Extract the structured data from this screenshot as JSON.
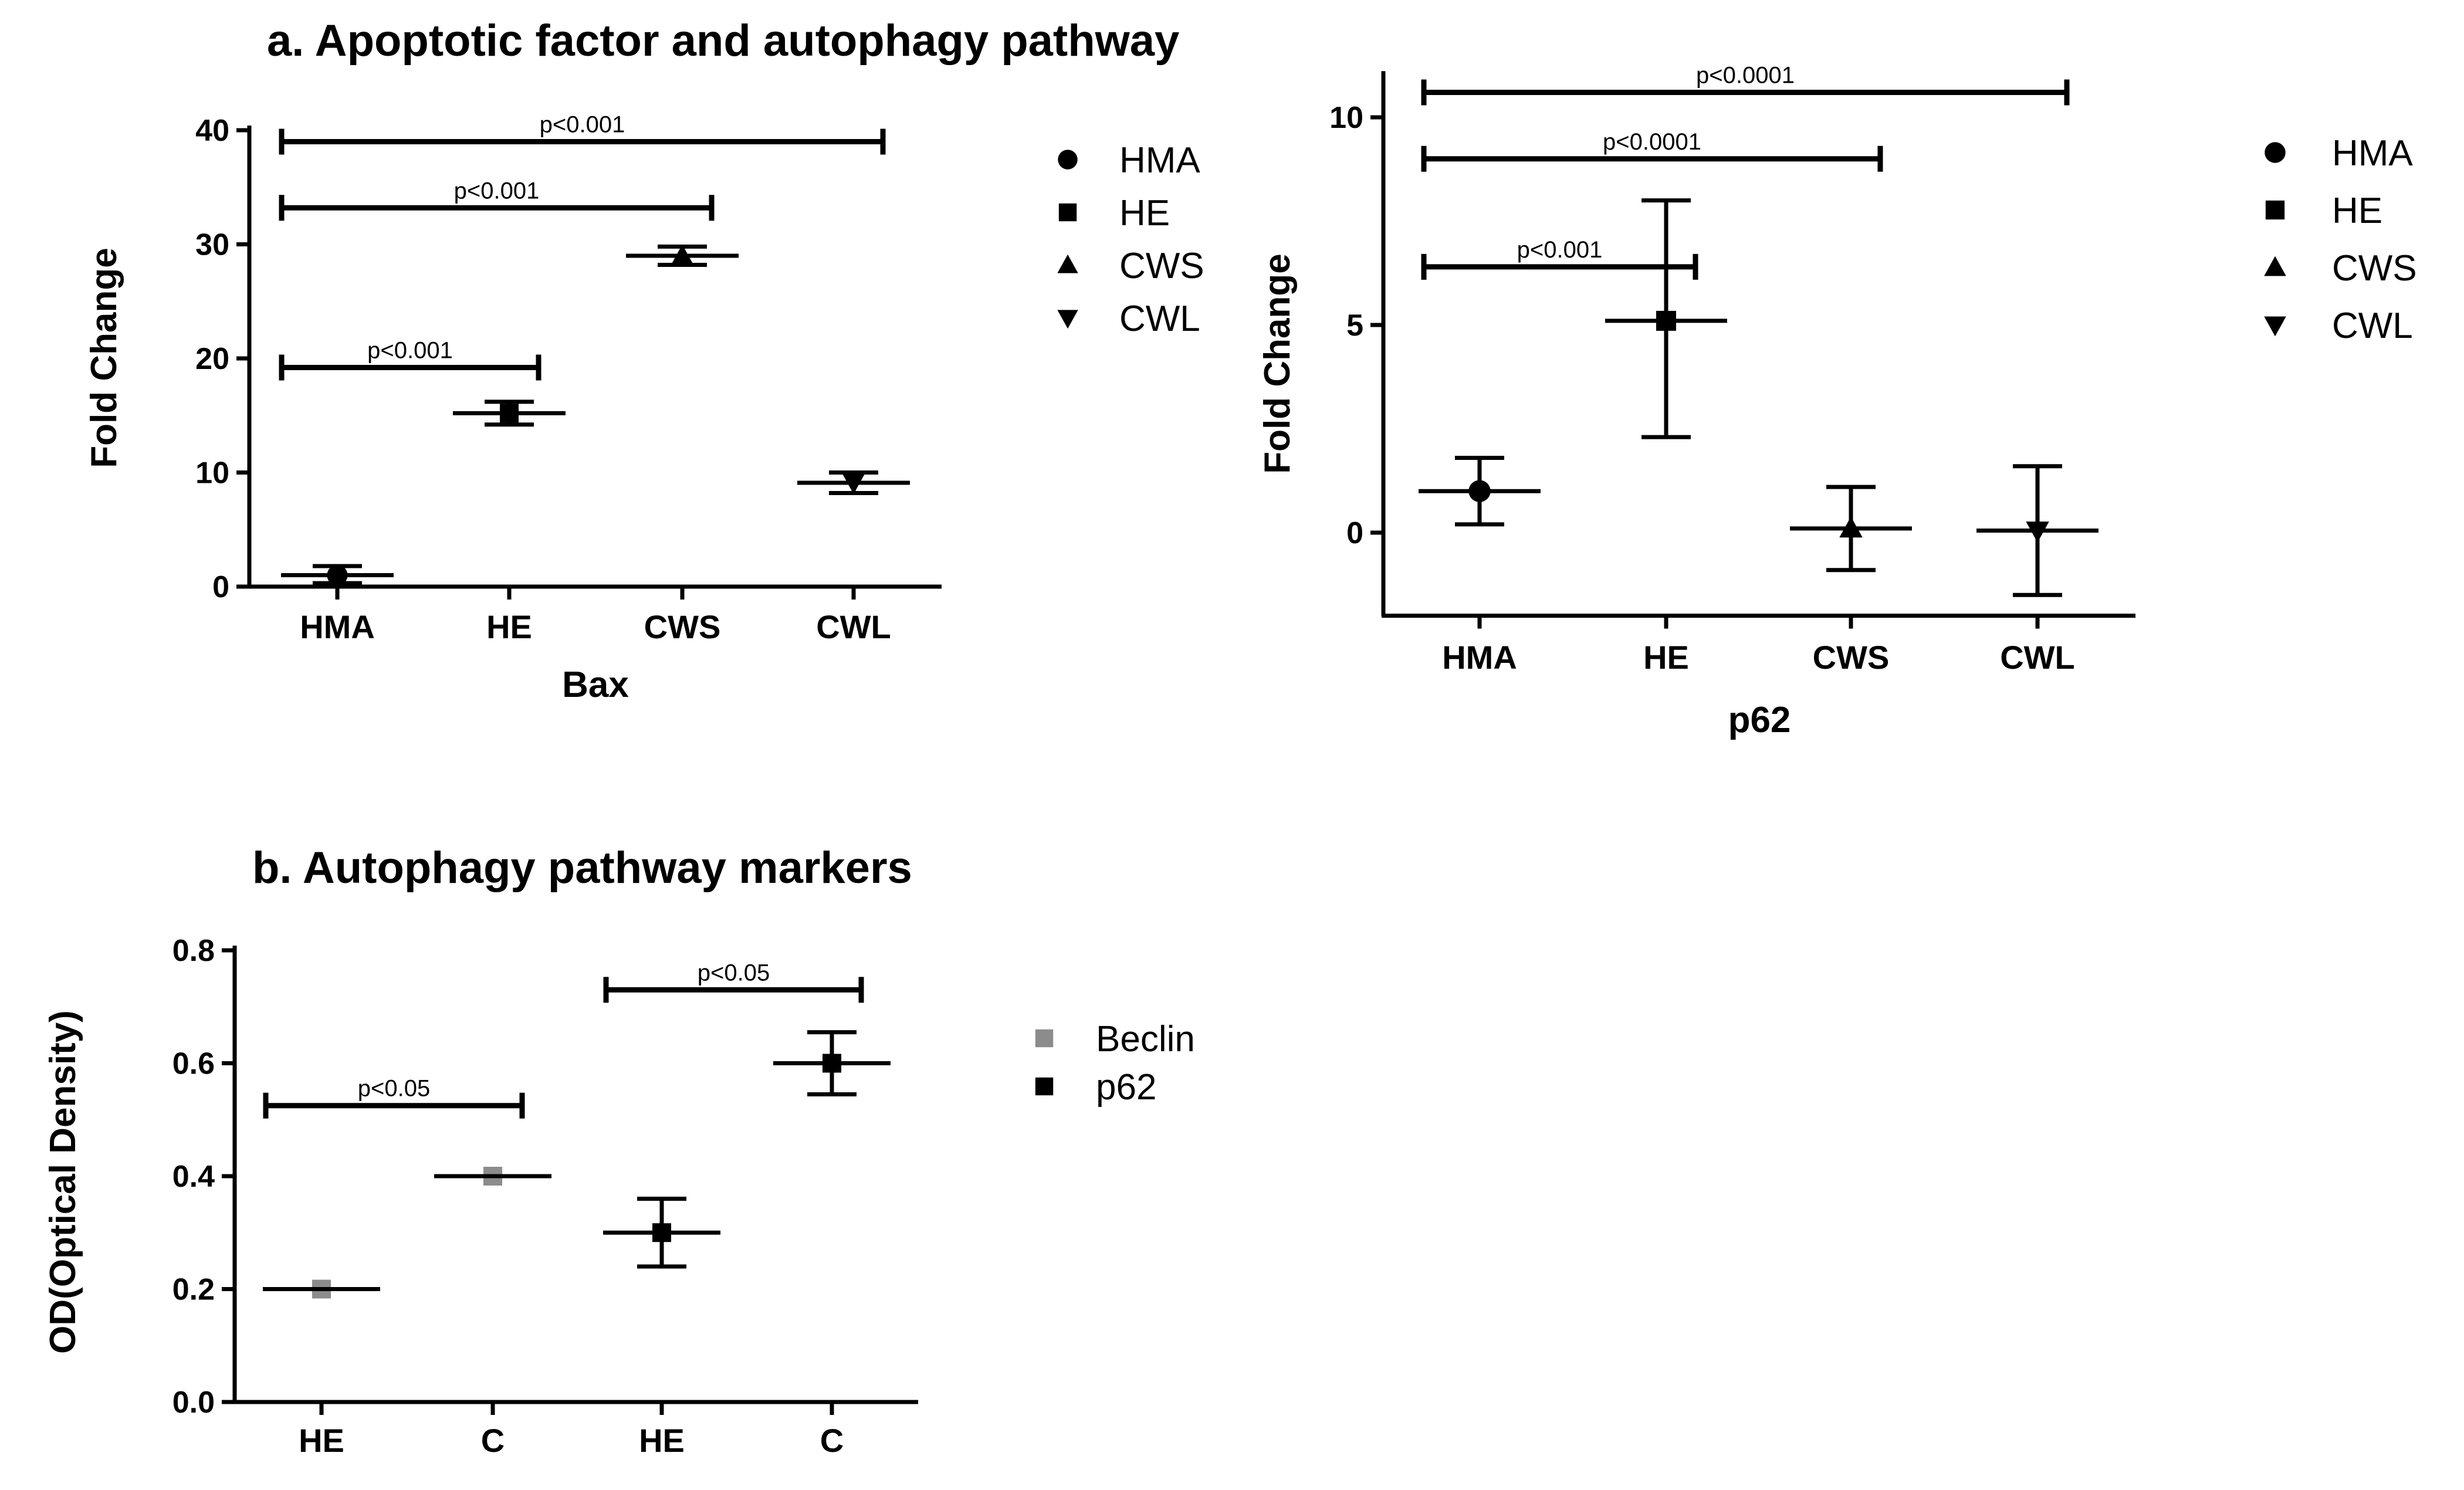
{
  "section_a_title": "a. Apoptotic factor and autophagy pathway",
  "section_b_title": "b. Autophagy pathway markers",
  "chart_data": [
    {
      "id": "bax",
      "type": "scatter",
      "xlabel": "Bax",
      "ylabel": "Fold Change",
      "ylim": [
        0,
        40
      ],
      "yticks": [
        0,
        10,
        20,
        30,
        40
      ],
      "categories": [
        "HMA",
        "HE",
        "CWS",
        "CWL"
      ],
      "series": [
        {
          "name": "HMA",
          "marker": "circle",
          "color": "#000000",
          "category": "HMA",
          "mean": 1.0,
          "err_low": 0.3,
          "err_high": 1.8
        },
        {
          "name": "HE",
          "marker": "square",
          "color": "#000000",
          "category": "HE",
          "mean": 15.2,
          "err_low": 14.2,
          "err_high": 16.2
        },
        {
          "name": "CWS",
          "marker": "triangle-up",
          "color": "#000000",
          "category": "CWS",
          "mean": 29.0,
          "err_low": 28.2,
          "err_high": 29.8
        },
        {
          "name": "CWL",
          "marker": "triangle-down",
          "color": "#000000",
          "category": "CWL",
          "mean": 9.1,
          "err_low": 8.2,
          "err_high": 10.0
        }
      ],
      "significance": [
        {
          "from": "HMA",
          "to": "HE",
          "y": 19.2,
          "label": "p<0.001"
        },
        {
          "from": "HMA",
          "to": "CWS",
          "y": 33.2,
          "label": "p<0.001"
        },
        {
          "from": "HMA",
          "to": "CWL",
          "y": 39.0,
          "label": "p<0.001"
        }
      ],
      "legend": [
        "HMA",
        "HE",
        "CWS",
        "CWL"
      ]
    },
    {
      "id": "p62",
      "type": "scatter",
      "xlabel": "p62",
      "ylabel": "Fold Change",
      "ylim": [
        -2,
        11
      ],
      "yticks": [
        0,
        5,
        10
      ],
      "categories": [
        "HMA",
        "HE",
        "CWS",
        "CWL"
      ],
      "series": [
        {
          "name": "HMA",
          "marker": "circle",
          "color": "#000000",
          "category": "HMA",
          "mean": 1.0,
          "err_low": 0.2,
          "err_high": 1.8
        },
        {
          "name": "HE",
          "marker": "square",
          "color": "#000000",
          "category": "HE",
          "mean": 5.1,
          "err_low": 2.3,
          "err_high": 8.0
        },
        {
          "name": "CWS",
          "marker": "triangle-up",
          "color": "#000000",
          "category": "CWS",
          "mean": 0.1,
          "err_low": -0.9,
          "err_high": 1.1
        },
        {
          "name": "CWL",
          "marker": "triangle-down",
          "color": "#000000",
          "category": "CWL",
          "mean": 0.05,
          "err_low": -1.5,
          "err_high": 1.6
        }
      ],
      "significance": [
        {
          "from": "HMA",
          "to": "HE",
          "y": 6.4,
          "label": "p<0.001"
        },
        {
          "from": "HMA",
          "to": "CWS",
          "y": 9.0,
          "label": "p<0.0001"
        },
        {
          "from": "HMA",
          "to": "CWL",
          "y": 10.6,
          "label": "p<0.0001"
        }
      ],
      "legend": [
        "HMA",
        "HE",
        "CWS",
        "CWL"
      ]
    },
    {
      "id": "markers",
      "type": "scatter",
      "xlabel": "",
      "ylabel": "OD(Optical Density)",
      "ylim": [
        0,
        0.8
      ],
      "yticks": [
        0.0,
        0.2,
        0.4,
        0.6,
        0.8
      ],
      "categories": [
        "HE",
        "C",
        "HE",
        "C"
      ],
      "series": [
        {
          "name": "Beclin",
          "marker": "square",
          "color": "#8c8c8c",
          "points": [
            {
              "index": 0,
              "mean": 0.2,
              "err_low": 0.2,
              "err_high": 0.2
            },
            {
              "index": 1,
              "mean": 0.4,
              "err_low": 0.4,
              "err_high": 0.4
            }
          ]
        },
        {
          "name": "p62",
          "marker": "square",
          "color": "#000000",
          "points": [
            {
              "index": 2,
              "mean": 0.3,
              "err_low": 0.24,
              "err_high": 0.36
            },
            {
              "index": 3,
              "mean": 0.6,
              "err_low": 0.545,
              "err_high": 0.655
            }
          ]
        }
      ],
      "significance": [
        {
          "from": 0,
          "to": 1,
          "y": 0.525,
          "label": "p<0.05"
        },
        {
          "from": 2,
          "to": 3,
          "y": 0.73,
          "label": "p<0.05"
        }
      ],
      "legend": [
        "Beclin",
        "p62"
      ]
    }
  ]
}
